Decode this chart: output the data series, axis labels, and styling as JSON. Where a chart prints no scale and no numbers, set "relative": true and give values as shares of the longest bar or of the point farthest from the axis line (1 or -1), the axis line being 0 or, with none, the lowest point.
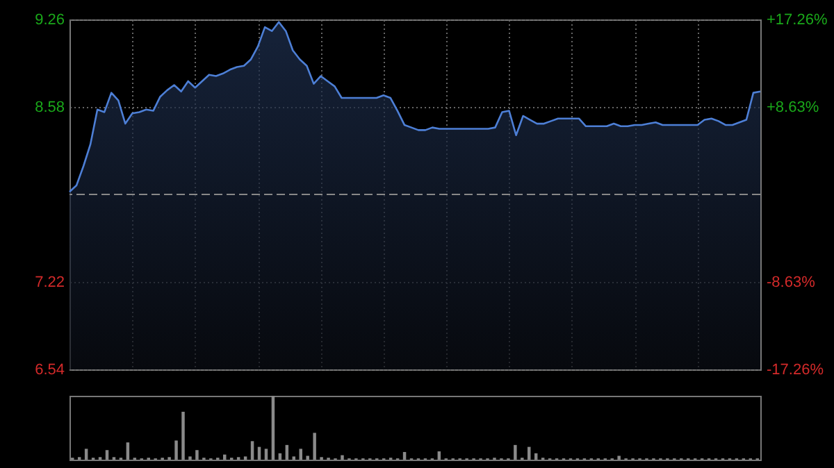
{
  "chart_data": [
    {
      "type": "area",
      "categories": [
        null,
        null,
        null,
        null,
        null,
        null,
        null,
        null,
        null,
        null,
        null,
        null,
        null,
        null,
        null,
        null,
        null,
        null,
        null,
        null,
        null,
        null,
        null,
        null,
        null,
        null,
        null,
        null,
        null,
        null,
        null,
        null,
        null,
        null,
        null,
        null,
        null,
        null,
        null,
        null,
        null,
        null,
        null,
        null,
        null,
        null,
        null,
        null,
        null,
        null,
        null,
        null,
        null,
        null,
        null,
        null,
        null,
        null,
        null,
        null,
        null,
        null,
        null,
        null,
        null,
        null,
        null,
        null,
        null,
        null,
        null,
        null,
        null,
        null,
        null,
        null,
        null,
        null,
        null,
        null,
        null,
        null,
        null,
        null,
        null,
        null,
        null,
        null,
        null,
        null,
        null,
        null,
        null,
        null,
        null,
        null,
        null,
        null,
        null,
        null
      ],
      "values": [
        7.92,
        7.97,
        8.12,
        8.29,
        8.56,
        8.54,
        8.69,
        8.63,
        8.45,
        8.53,
        8.54,
        8.56,
        8.55,
        8.66,
        8.71,
        8.75,
        8.7,
        8.78,
        8.73,
        8.78,
        8.83,
        8.82,
        8.84,
        8.87,
        8.89,
        8.9,
        8.95,
        9.05,
        9.2,
        9.17,
        9.24,
        9.17,
        9.02,
        8.95,
        8.9,
        8.76,
        8.82,
        8.78,
        8.74,
        8.65,
        8.65,
        8.65,
        8.65,
        8.65,
        8.65,
        8.67,
        8.65,
        8.55,
        8.44,
        8.42,
        8.4,
        8.4,
        8.42,
        8.41,
        8.41,
        8.41,
        8.41,
        8.41,
        8.41,
        8.41,
        8.41,
        8.42,
        8.54,
        8.55,
        8.36,
        8.51,
        8.48,
        8.45,
        8.45,
        8.47,
        8.49,
        8.49,
        8.49,
        8.49,
        8.43,
        8.43,
        8.43,
        8.43,
        8.45,
        8.43,
        8.43,
        8.44,
        8.44,
        8.45,
        8.46,
        8.44,
        8.44,
        8.44,
        8.44,
        8.44,
        8.44,
        8.48,
        8.49,
        8.47,
        8.44,
        8.44,
        8.46,
        8.48,
        8.69,
        8.7
      ],
      "color": "#4d7fd6",
      "ylim": [
        6.54,
        9.26
      ],
      "yticks": [
        6.54,
        7.22,
        8.58,
        9.26
      ],
      "y2lim": [
        -17.26,
        17.26
      ],
      "y2ticks": [
        {
          "value": -17.26,
          "label": "-17.26%"
        },
        {
          "value": -8.63,
          "label": "-8.63%"
        },
        {
          "value": 8.63,
          "label": "+8.63%"
        },
        {
          "value": 17.26,
          "label": "+17.26%"
        }
      ],
      "ref_lines": [
        {
          "axis": "y",
          "value": 7.9,
          "line_style": "dashed"
        }
      ],
      "grid": true
    },
    {
      "type": "bar",
      "relative": true,
      "categories": [
        null,
        null,
        null,
        null,
        null,
        null,
        null,
        null,
        null,
        null,
        null,
        null,
        null,
        null,
        null,
        null,
        null,
        null,
        null,
        null,
        null,
        null,
        null,
        null,
        null,
        null,
        null,
        null,
        null,
        null,
        null,
        null,
        null,
        null,
        null,
        null,
        null,
        null,
        null,
        null,
        null,
        null,
        null,
        null,
        null,
        null,
        null,
        null,
        null,
        null,
        null,
        null,
        null,
        null,
        null,
        null,
        null,
        null,
        null,
        null,
        null,
        null,
        null,
        null,
        null,
        null,
        null,
        null,
        null,
        null,
        null,
        null,
        null,
        null,
        null,
        null,
        null,
        null,
        null,
        null,
        null,
        null,
        null,
        null,
        null,
        null,
        null,
        null,
        null,
        null,
        null,
        null,
        null,
        null,
        null,
        null,
        null,
        null,
        null,
        null
      ],
      "values": [
        0.03,
        0.04,
        0.17,
        0.03,
        0.04,
        0.15,
        0.04,
        0.03,
        0.27,
        0.03,
        0.02,
        0.03,
        0.02,
        0.03,
        0.04,
        0.3,
        0.75,
        0.05,
        0.15,
        0.03,
        0.02,
        0.03,
        0.08,
        0.03,
        0.04,
        0.05,
        0.29,
        0.2,
        0.17,
        1.0,
        0.1,
        0.23,
        0.05,
        0.17,
        0.06,
        0.42,
        0.04,
        0.03,
        0.02,
        0.07,
        0.02,
        0.02,
        0.02,
        0.02,
        0.02,
        0.02,
        0.03,
        0.02,
        0.12,
        0.02,
        0.02,
        0.02,
        0.02,
        0.13,
        0.02,
        0.02,
        0.02,
        0.02,
        0.02,
        0.02,
        0.02,
        0.03,
        0.02,
        0.02,
        0.23,
        0.03,
        0.2,
        0.1,
        0.03,
        0.02,
        0.02,
        0.02,
        0.02,
        0.02,
        0.02,
        0.02,
        0.02,
        0.02,
        0.02,
        0.06,
        0.02,
        0.02,
        0.02,
        0.02,
        0.02,
        0.02,
        0.02,
        0.02,
        0.02,
        0.02,
        0.02,
        0.02,
        0.02,
        0.02,
        0.02,
        0.02,
        0.02,
        0.02,
        0.02,
        0.02
      ],
      "color": "#8a8a8a"
    }
  ]
}
